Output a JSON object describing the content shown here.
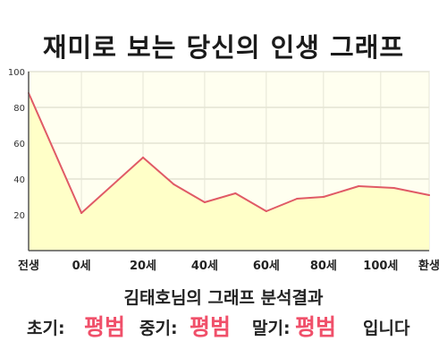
{
  "title": "재미로 보는 당신의 인생 그래프",
  "subtitle": "김태호님의 그래프 분석결과",
  "result": {
    "early_label": "초기:",
    "early_value": "평범",
    "middle_label": "중기:",
    "middle_value": "평범",
    "late_label": "말기:",
    "late_value": "평범",
    "ending": "입니다"
  },
  "colors": {
    "line": "#e05a66",
    "fill": "#ffffc8",
    "plot_bg": "#fffff0",
    "grid": "#d4d4c4",
    "accent": "#f0506a"
  },
  "chart_data": {
    "type": "area",
    "x_tick_labels": [
      "전생",
      "0세",
      "20세",
      "40세",
      "60세",
      "80세",
      "100세",
      "환생"
    ],
    "x": [
      0,
      12,
      26,
      33,
      40,
      47,
      54,
      61,
      67,
      75,
      83,
      91
    ],
    "y": [
      88,
      21,
      52,
      37,
      27,
      32,
      22,
      29,
      30,
      36,
      35,
      31
    ],
    "x_axis": {
      "start": 0,
      "end": 91
    },
    "x_tick_positions": [
      0,
      12,
      26,
      40,
      54,
      67,
      80,
      91
    ],
    "y_ticks": [
      20,
      40,
      60,
      80,
      100
    ],
    "ylim": [
      0,
      100
    ],
    "grid": true
  }
}
